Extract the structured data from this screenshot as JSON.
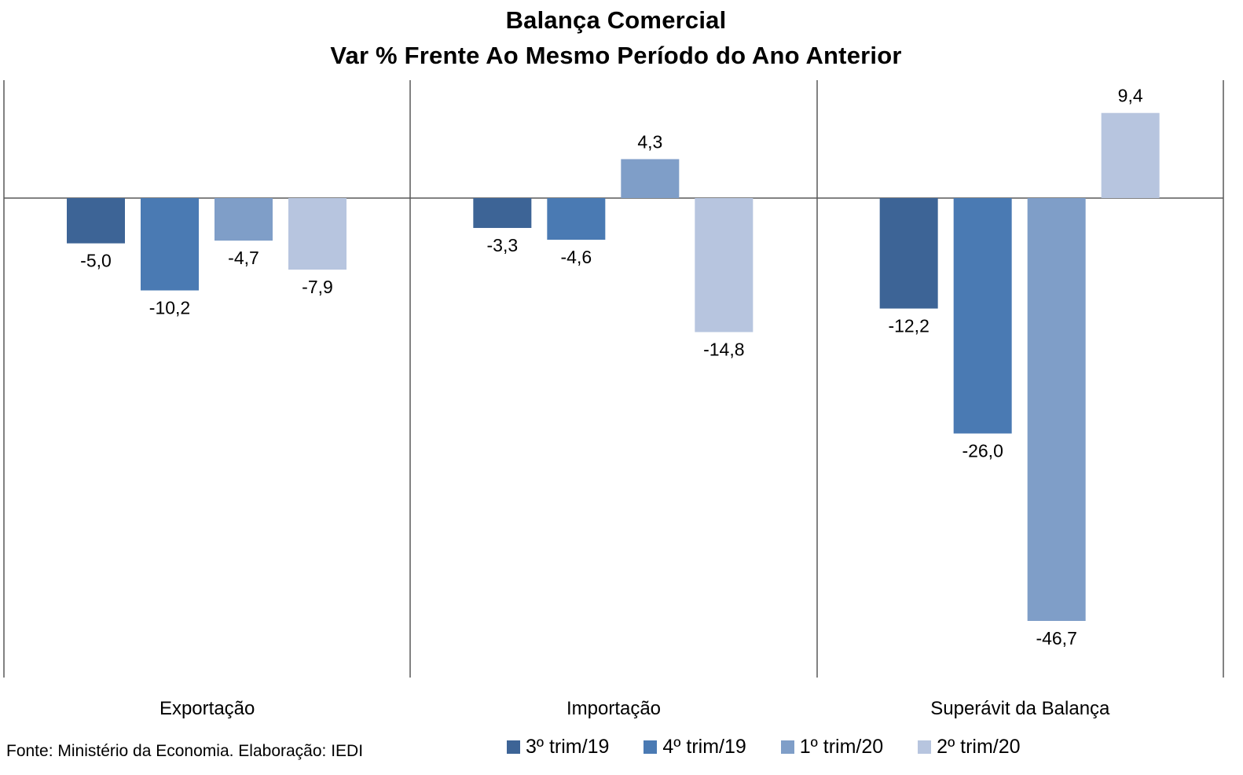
{
  "chart_data": {
    "type": "bar",
    "title": "Balança Comercial",
    "subtitle": "Var % Frente Ao Mesmo Período do Ano Anterior",
    "categories": [
      "Exportação",
      "Importação",
      "Superávit da Balança"
    ],
    "series": [
      {
        "name": "3º trim/19",
        "color": "#3d6496",
        "values": [
          -5.0,
          -3.3,
          -12.2
        ],
        "labels": [
          "-5,0",
          "-3,3",
          "-12,2"
        ]
      },
      {
        "name": "4º trim/19",
        "color": "#4a7ab3",
        "values": [
          -10.2,
          -4.6,
          -26.0
        ],
        "labels": [
          "-10,2",
          "-4,6",
          "-26,0"
        ]
      },
      {
        "name": "1º trim/20",
        "color": "#7f9ec8",
        "values": [
          -4.7,
          4.3,
          -46.7
        ],
        "labels": [
          "-4,7",
          "4,3",
          "-46,7"
        ]
      },
      {
        "name": "2º trim/20",
        "color": "#b7c5df",
        "values": [
          -7.9,
          -14.8,
          9.4
        ],
        "labels": [
          "-7,9",
          "-14,8",
          "9,4"
        ]
      }
    ],
    "ylim": [
      -53,
      13
    ],
    "legend_position": "bottom-right",
    "grid": false
  },
  "source_note": "Fonte: Ministério da Economia. Elaboração: IEDI"
}
